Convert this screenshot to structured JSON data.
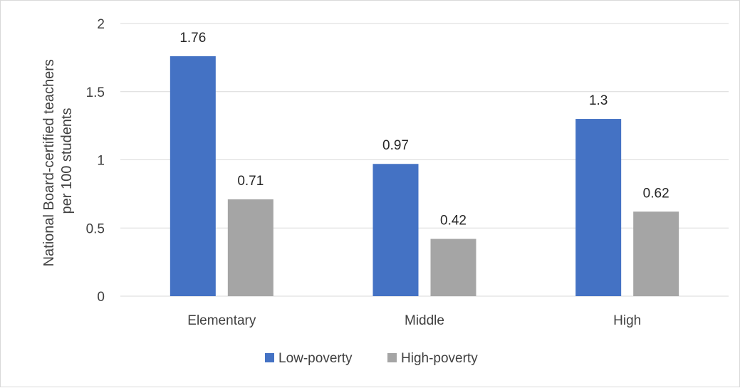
{
  "chart_data": {
    "type": "bar",
    "categories": [
      "Elementary",
      "Middle",
      "High"
    ],
    "series": [
      {
        "name": "Low-poverty",
        "color": "#4472C4",
        "values": [
          1.76,
          0.97,
          1.3
        ]
      },
      {
        "name": "High-poverty",
        "color": "#A5A5A5",
        "values": [
          0.71,
          0.42,
          0.62
        ]
      }
    ],
    "data_labels": [
      [
        "1.76",
        "0.97",
        "1.3"
      ],
      [
        "0.71",
        "0.42",
        "0.62"
      ]
    ],
    "ylabel_lines": [
      "National Board-certified teachers",
      "per 100 students"
    ],
    "ylim": [
      0,
      2
    ],
    "yticks": [
      0,
      0.5,
      1,
      1.5,
      2
    ],
    "ytick_labels": [
      "0",
      "0.5",
      "1",
      "1.5",
      "2"
    ],
    "grid": true,
    "legend_position": "bottom-center"
  }
}
